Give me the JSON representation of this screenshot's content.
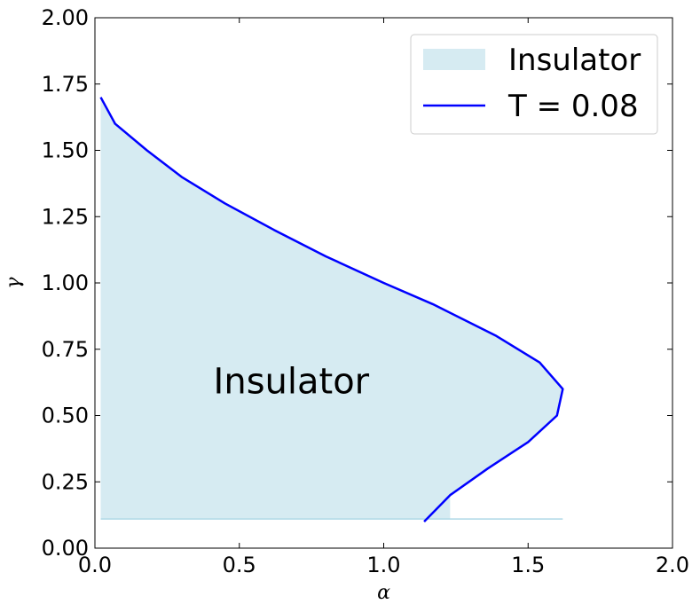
{
  "chart_data": {
    "type": "area",
    "xlabel": "α",
    "ylabel": "γ",
    "xlim": [
      0.0,
      2.0
    ],
    "ylim": [
      0.0,
      2.0
    ],
    "xticks": [
      "0.0",
      "0.5",
      "1.0",
      "1.5",
      "2.0"
    ],
    "yticks": [
      "0.00",
      "0.25",
      "0.50",
      "0.75",
      "1.00",
      "1.25",
      "1.50",
      "1.75",
      "2.00"
    ],
    "grid": false,
    "legend_position": "top-right",
    "series": [
      {
        "name": "Insulator",
        "kind": "fill",
        "color": "#add8e6",
        "points": [
          {
            "x": 0.02,
            "y": 1.7
          },
          {
            "x": 0.07,
            "y": 1.6
          },
          {
            "x": 0.18,
            "y": 1.5
          },
          {
            "x": 0.3,
            "y": 1.4
          },
          {
            "x": 0.45,
            "y": 1.3
          },
          {
            "x": 0.62,
            "y": 1.2
          },
          {
            "x": 0.8,
            "y": 1.1
          },
          {
            "x": 1.0,
            "y": 1.0
          },
          {
            "x": 1.17,
            "y": 0.92
          },
          {
            "x": 1.39,
            "y": 0.8
          },
          {
            "x": 1.54,
            "y": 0.7
          },
          {
            "x": 1.62,
            "y": 0.6
          },
          {
            "x": 1.6,
            "y": 0.5
          },
          {
            "x": 1.5,
            "y": 0.4
          },
          {
            "x": 1.36,
            "y": 0.3
          },
          {
            "x": 1.23,
            "y": 0.2
          },
          {
            "x": 1.14,
            "y": 0.1
          }
        ],
        "fill_baseline_y": 0.11,
        "fill_x_range": [
          0.02,
          1.62
        ]
      },
      {
        "name": "T = 0.08",
        "kind": "line",
        "color": "#0000ff",
        "points": [
          {
            "x": 0.02,
            "y": 1.7
          },
          {
            "x": 0.07,
            "y": 1.6
          },
          {
            "x": 0.18,
            "y": 1.5
          },
          {
            "x": 0.3,
            "y": 1.4
          },
          {
            "x": 0.45,
            "y": 1.3
          },
          {
            "x": 0.62,
            "y": 1.2
          },
          {
            "x": 0.8,
            "y": 1.1
          },
          {
            "x": 1.0,
            "y": 1.0
          },
          {
            "x": 1.17,
            "y": 0.92
          },
          {
            "x": 1.39,
            "y": 0.8
          },
          {
            "x": 1.54,
            "y": 0.7
          },
          {
            "x": 1.62,
            "y": 0.6
          },
          {
            "x": 1.6,
            "y": 0.5
          },
          {
            "x": 1.5,
            "y": 0.4
          },
          {
            "x": 1.36,
            "y": 0.3
          },
          {
            "x": 1.23,
            "y": 0.2
          },
          {
            "x": 1.14,
            "y": 0.1
          }
        ]
      }
    ],
    "annotations": [
      {
        "text": "Insulator",
        "x": 0.68,
        "y": 0.62
      }
    ],
    "legend": [
      {
        "label": "Insulator",
        "kind": "fill",
        "color": "#add8e6"
      },
      {
        "label": "T = 0.08",
        "kind": "line",
        "color": "#0000ff"
      }
    ]
  }
}
